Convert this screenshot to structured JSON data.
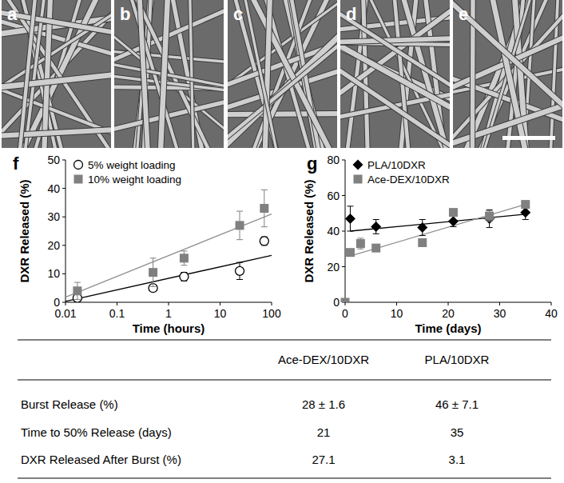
{
  "images": [
    {
      "label": "a"
    },
    {
      "label": "b"
    },
    {
      "label": "c"
    },
    {
      "label": "d"
    },
    {
      "label": "e"
    }
  ],
  "chart_data": [
    {
      "type": "scatter",
      "panel": "f",
      "log": "x",
      "x_label": "Time (hours)",
      "y_label": "DXR Released (%)",
      "xlim": [
        0.01,
        100
      ],
      "xticks": [
        0.01,
        0.1,
        1,
        10,
        100
      ],
      "ylim": [
        0,
        50
      ],
      "yticks": [
        0,
        10,
        20,
        30,
        40,
        50
      ],
      "legend": "top-left",
      "series": [
        {
          "name": "5% weight loading",
          "color": "#000000",
          "marker": "open-circle",
          "x": [
            0.017,
            0.5,
            2,
            24,
            72
          ],
          "values": [
            1.5,
            5,
            9,
            11,
            21.5
          ],
          "errors": [
            0.5,
            1,
            1.5,
            3,
            1.5
          ]
        },
        {
          "name": "10% weight loading",
          "color": "#808080",
          "marker": "square",
          "x": [
            0.017,
            0.5,
            2,
            24,
            72
          ],
          "values": [
            4,
            10.5,
            15.5,
            27,
            33
          ],
          "errors": [
            3,
            5,
            2.5,
            5,
            6.5
          ]
        },
        {
          "type": "line",
          "color": "#000000",
          "x": [
            0.01,
            100
          ],
          "values": [
            0.3,
            16.5
          ]
        },
        {
          "type": "line",
          "color": "#909090",
          "x": [
            0.01,
            100
          ],
          "values": [
            1.8,
            31
          ]
        }
      ]
    },
    {
      "type": "scatter",
      "panel": "g",
      "x_label": "Time (days)",
      "y_label": "DXR Released (%)",
      "xlim": [
        0,
        40
      ],
      "xticks": [
        0,
        10,
        20,
        30,
        40
      ],
      "ylim": [
        0,
        80
      ],
      "yticks": [
        0,
        20,
        40,
        60,
        80
      ],
      "legend": "top-left",
      "series": [
        {
          "name": "PLA/10DXR",
          "color": "#000000",
          "marker": "diamond",
          "x": [
            1,
            6,
            15,
            21,
            28,
            35
          ],
          "values": [
            47,
            42.5,
            42,
            45.5,
            47,
            50.5
          ],
          "errors": [
            7,
            4,
            4.5,
            3,
            5,
            4
          ]
        },
        {
          "name": "Ace-DEX/10DXR",
          "color": "#808080",
          "marker": "square",
          "x": [
            0,
            1,
            3,
            6,
            15,
            21,
            28,
            35
          ],
          "values": [
            0,
            28,
            33,
            30.5,
            33.5,
            50.5,
            48.5,
            55
          ],
          "errors": [
            0,
            1.6,
            3,
            2,
            1,
            1,
            3,
            1
          ]
        },
        {
          "type": "line",
          "color": "#000000",
          "x": [
            1,
            35
          ],
          "values": [
            40,
            49.5
          ]
        },
        {
          "type": "line",
          "color": "#909090",
          "x": [
            1,
            35
          ],
          "values": [
            26,
            55
          ]
        }
      ]
    }
  ],
  "table": {
    "columns": [
      "Ace-DEX/10DXR",
      "PLA/10DXR"
    ],
    "rows": [
      {
        "label": "Burst Release (%)",
        "cells": [
          "28 ± 1.6",
          "46 ± 7.1"
        ]
      },
      {
        "label": "Time to 50% Release (days)",
        "cells": [
          "21",
          "35"
        ]
      },
      {
        "label": "DXR Released  After Burst (%)",
        "cells": [
          "27.1",
          "3.1"
        ]
      }
    ]
  }
}
